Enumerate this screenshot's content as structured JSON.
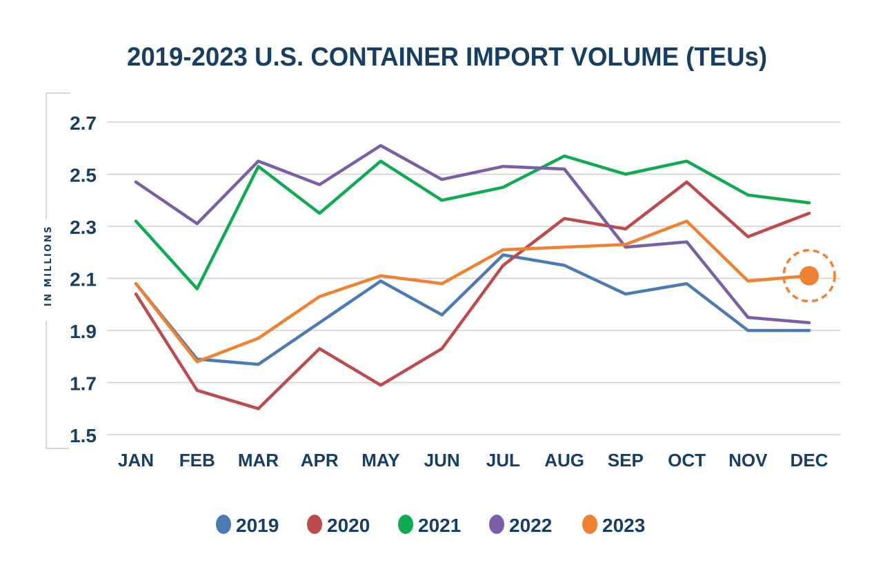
{
  "chart_data": {
    "type": "line",
    "title": "2019-2023 U.S. CONTAINER IMPORT VOLUME (TEUs)",
    "xlabel": "",
    "ylabel": "IN MILLIONS",
    "ylim": [
      1.5,
      2.7
    ],
    "yticks": [
      "2.7",
      "2.5",
      "2.3",
      "2.1",
      "1.9",
      "1.7",
      "1.5"
    ],
    "ytick_values": [
      2.7,
      2.5,
      2.3,
      2.1,
      1.9,
      1.7,
      1.5
    ],
    "categories": [
      "JAN",
      "FEB",
      "MAR",
      "APR",
      "MAY",
      "JUN",
      "JUL",
      "AUG",
      "SEP",
      "OCT",
      "NOV",
      "DEC"
    ],
    "grid": true,
    "legend_position": "bottom",
    "series": [
      {
        "name": "2019",
        "color": "#4a7bb5",
        "values": [
          2.08,
          1.79,
          1.77,
          1.93,
          2.09,
          1.96,
          2.19,
          2.15,
          2.04,
          2.08,
          1.9,
          1.9
        ]
      },
      {
        "name": "2020",
        "color": "#bd4b4b",
        "values": [
          2.04,
          1.67,
          1.6,
          1.83,
          1.69,
          1.83,
          2.15,
          2.33,
          2.29,
          2.47,
          2.26,
          2.35
        ]
      },
      {
        "name": "2021",
        "color": "#0fab50",
        "values": [
          2.32,
          2.06,
          2.53,
          2.35,
          2.55,
          2.4,
          2.45,
          2.57,
          2.5,
          2.55,
          2.42,
          2.39
        ]
      },
      {
        "name": "2022",
        "color": "#7b5fa6",
        "values": [
          2.47,
          2.31,
          2.55,
          2.46,
          2.61,
          2.48,
          2.53,
          2.52,
          2.22,
          2.24,
          1.95,
          1.93
        ]
      },
      {
        "name": "2023",
        "color": "#ef8130",
        "values": [
          2.08,
          1.78,
          1.87,
          2.03,
          2.11,
          2.08,
          2.21,
          2.22,
          2.23,
          2.32,
          2.09,
          2.11
        ]
      }
    ],
    "annotations": [
      {
        "type": "highlight-marker",
        "series": "2023",
        "category": "DEC",
        "value": 2.11,
        "style": "filled dot with dashed ring"
      }
    ]
  }
}
